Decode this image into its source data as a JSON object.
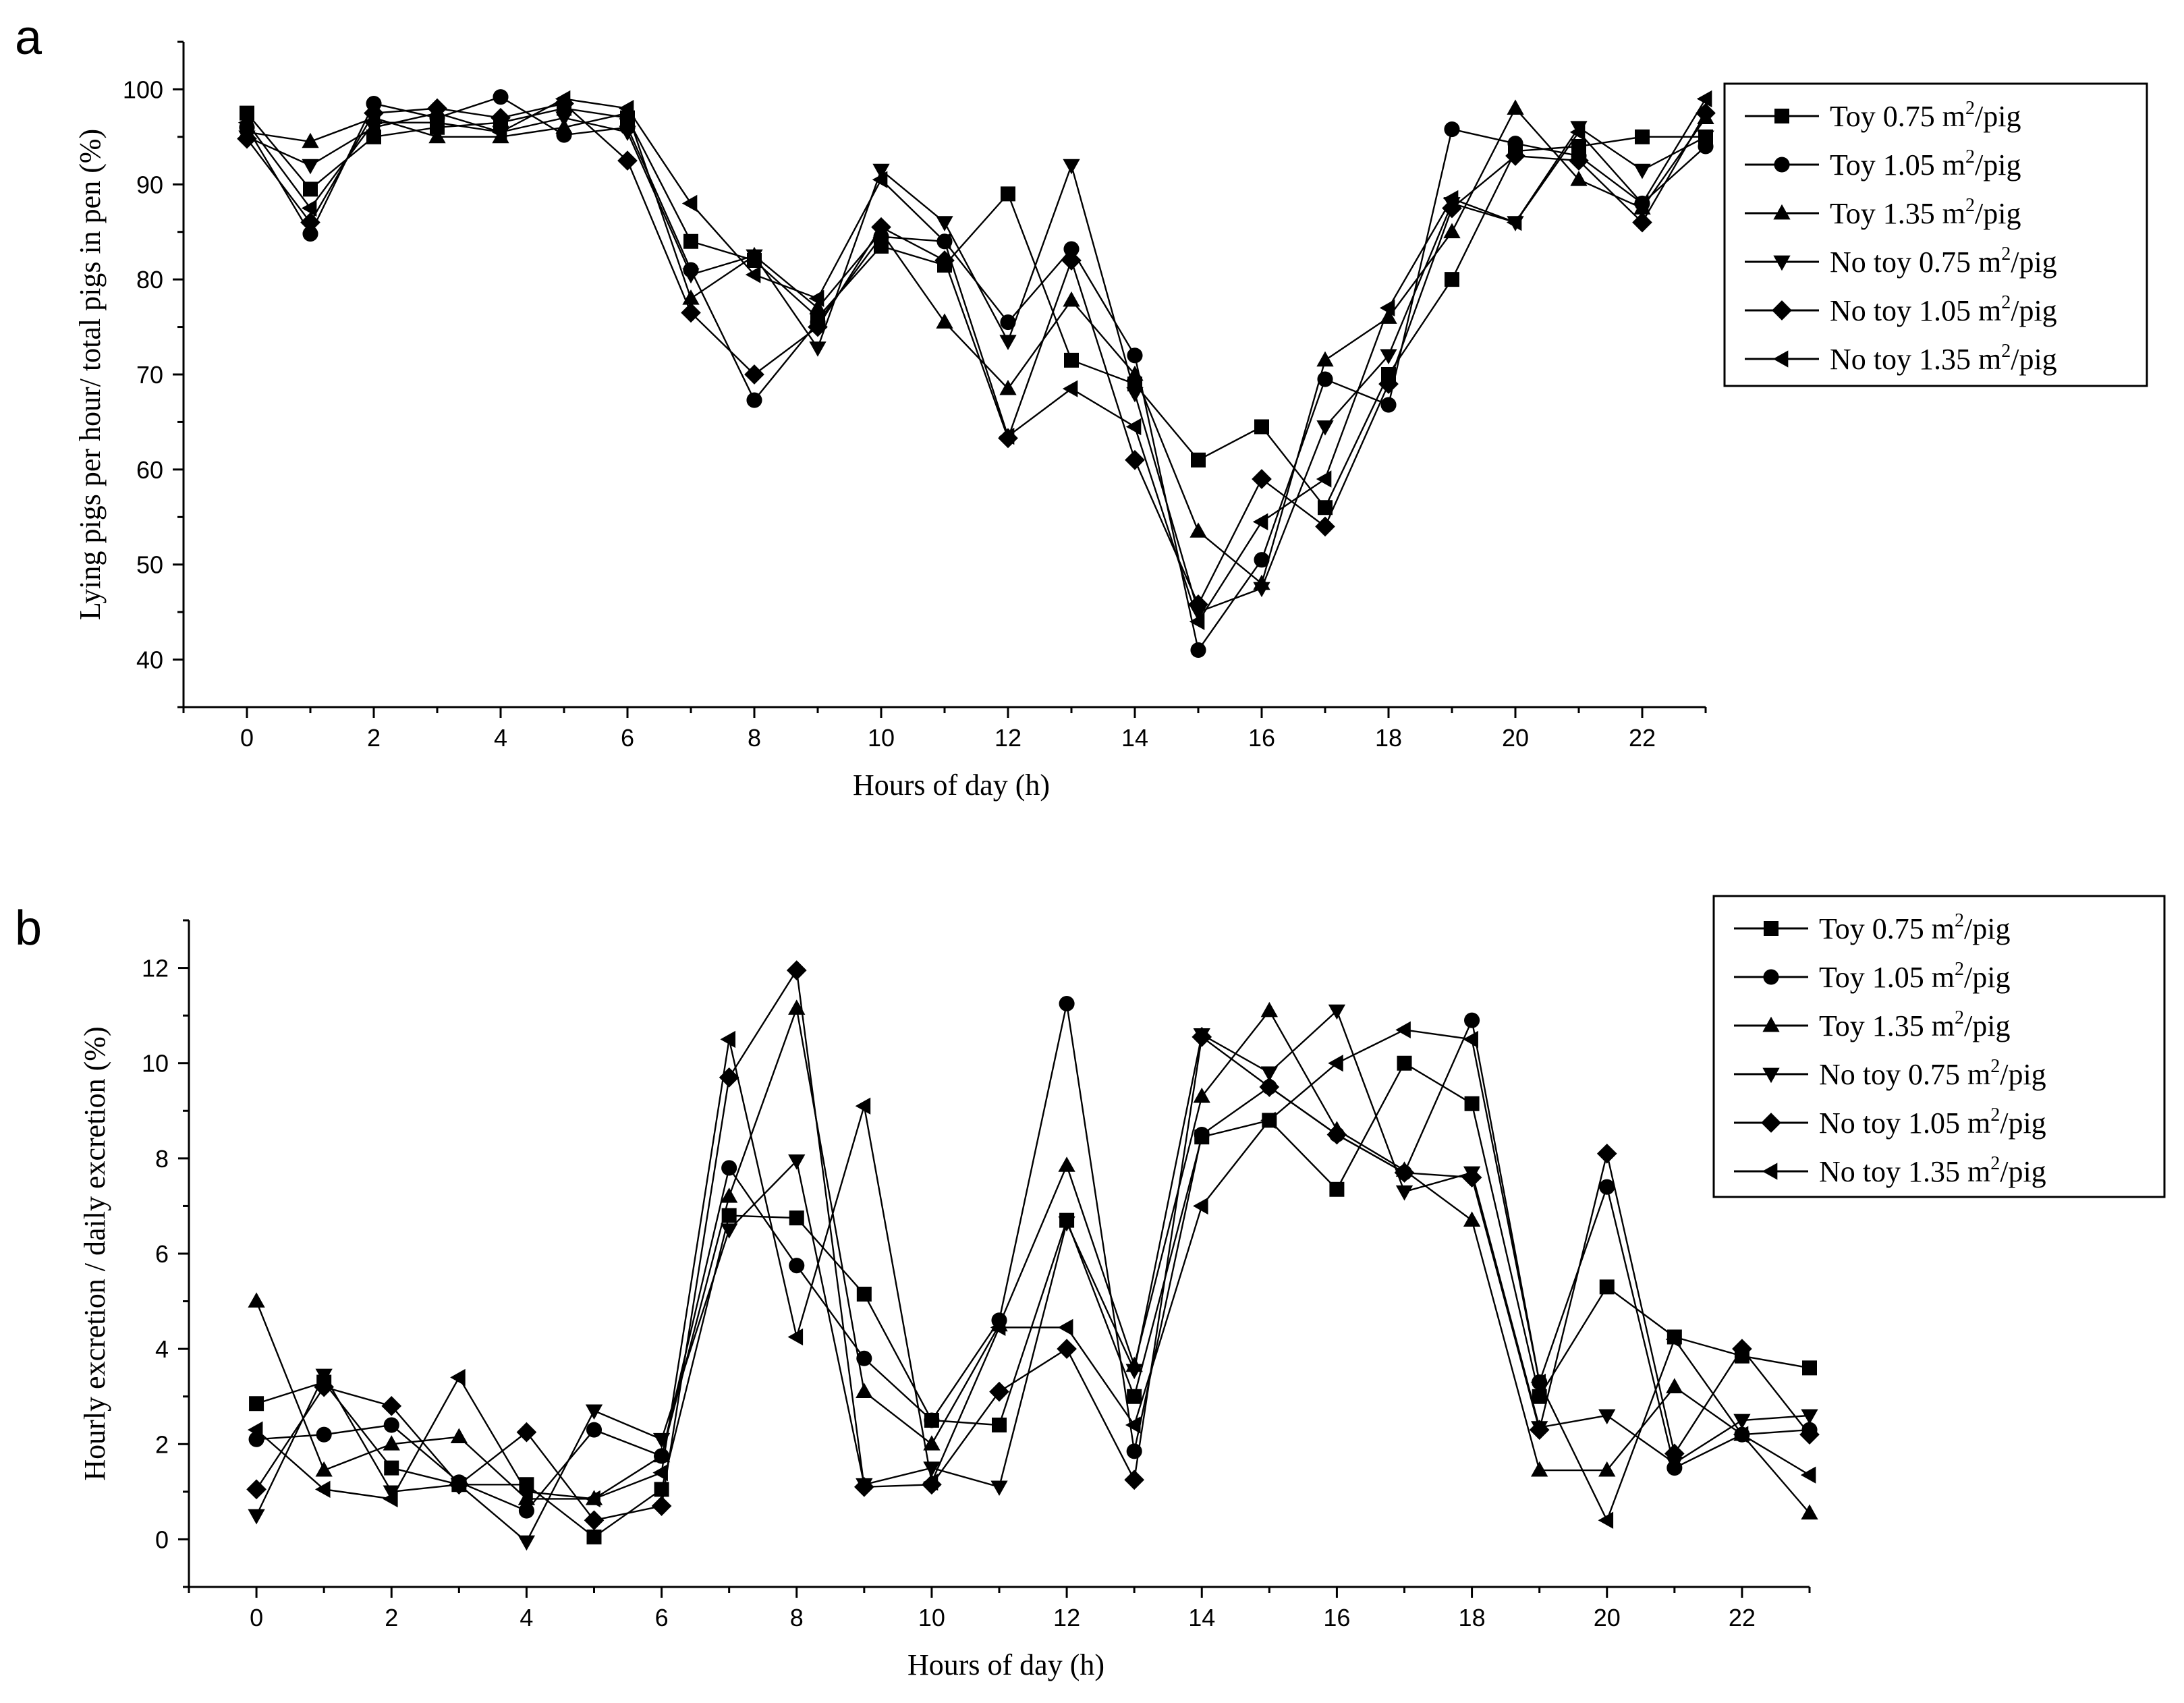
{
  "chart_data": [
    {
      "panel": "a",
      "type": "line",
      "xlabel": "Hours of day (h)",
      "ylabel": "Lying pigs per hour/ total pigs in pen (%)",
      "xlim": [
        -1,
        23
      ],
      "ylim": [
        35,
        105
      ],
      "x_ticks": [
        0,
        2,
        4,
        6,
        8,
        10,
        12,
        14,
        16,
        18,
        20,
        22
      ],
      "y_ticks": [
        40,
        50,
        60,
        70,
        80,
        90,
        100
      ],
      "legend_position": "top-right",
      "grid": false,
      "x": [
        0,
        1,
        2,
        3,
        4,
        5,
        6,
        7,
        8,
        9,
        10,
        11,
        12,
        13,
        14,
        15,
        16,
        17,
        18,
        19,
        20,
        21,
        22,
        23
      ],
      "series": [
        {
          "name": "Toy 0.75 m²/pig",
          "marker": "square",
          "values": [
            97.5,
            89.5,
            95,
            96,
            96.5,
            98,
            97,
            84,
            82,
            76,
            83.5,
            81.5,
            89,
            71.5,
            69,
            61,
            64.5,
            56,
            70,
            80,
            93.5,
            94,
            95,
            95
          ]
        },
        {
          "name": "Toy 1.05 m²/pig",
          "marker": "circle",
          "values": [
            96,
            84.8,
            98.5,
            97,
            99.2,
            95.2,
            96,
            81,
            67.3,
            75.5,
            84.5,
            84,
            75.5,
            83.2,
            72,
            41,
            50.5,
            69.5,
            66.8,
            95.8,
            94.3,
            93,
            88,
            94
          ]
        },
        {
          "name": "Toy 1.35 m²/pig",
          "marker": "triangle-up",
          "values": [
            95.5,
            94.5,
            97,
            95,
            95,
            96,
            97.5,
            78,
            82.5,
            77,
            85,
            75.5,
            68.5,
            77.8,
            70,
            53.5,
            48,
            71.5,
            76,
            85,
            98,
            90.5,
            87.5,
            97
          ]
        },
        {
          "name": "No toy 0.75 m²/pig",
          "marker": "triangle-down",
          "values": [
            95,
            92,
            96,
            97.5,
            95.5,
            97,
            95.5,
            80.5,
            82.5,
            72.8,
            91.5,
            86,
            73.5,
            92,
            68,
            45,
            47.5,
            64.5,
            72,
            88,
            86,
            96,
            91.5,
            95
          ]
        },
        {
          "name": "No toy 1.05 m²/pig",
          "marker": "diamond",
          "values": [
            94.8,
            86,
            97.5,
            98,
            97,
            98.5,
            92.5,
            76.5,
            70,
            75,
            85.5,
            82,
            63.3,
            82,
            61,
            45.8,
            59,
            54,
            69,
            87.5,
            93,
            92.5,
            86,
            97.5
          ]
        },
        {
          "name": "No toy 1.35 m²/pig",
          "marker": "triangle-left",
          "values": [
            96.5,
            87.5,
            96.5,
            96.5,
            95.5,
            99,
            98,
            88,
            80.5,
            78,
            90.5,
            84,
            63.5,
            68.5,
            64.5,
            44,
            54.5,
            59,
            77,
            88.5,
            86,
            95.5,
            88,
            99
          ]
        }
      ]
    },
    {
      "panel": "b",
      "type": "line",
      "xlabel": "Hours of day (h)",
      "ylabel": "Hourly excretion / daily excretion (%)",
      "xlim": [
        -1,
        23
      ],
      "ylim": [
        -1,
        13
      ],
      "x_ticks": [
        0,
        2,
        4,
        6,
        8,
        10,
        12,
        14,
        16,
        18,
        20,
        22
      ],
      "y_ticks": [
        0,
        2,
        4,
        6,
        8,
        10,
        12
      ],
      "legend_position": "top-right",
      "grid": false,
      "x": [
        0,
        1,
        2,
        3,
        4,
        5,
        6,
        7,
        8,
        9,
        10,
        11,
        12,
        13,
        14,
        15,
        16,
        17,
        18,
        19,
        20,
        21,
        22,
        23
      ],
      "series": [
        {
          "name": "Toy 0.75 m²/pig",
          "marker": "square",
          "values": [
            2.85,
            3.3,
            1.5,
            1.15,
            1.15,
            0.05,
            1.05,
            6.8,
            6.75,
            5.15,
            2.5,
            2.4,
            6.7,
            3.0,
            8.45,
            8.8,
            7.35,
            10.0,
            9.15,
            3.0,
            5.3,
            4.25,
            3.85,
            3.6
          ]
        },
        {
          "name": "Toy 1.05 m²/pig",
          "marker": "circle",
          "values": [
            2.1,
            2.2,
            2.4,
            1.2,
            0.6,
            2.3,
            1.75,
            7.8,
            5.75,
            3.8,
            2.5,
            4.6,
            11.25,
            1.85,
            8.5,
            9.5,
            8.5,
            7.7,
            10.9,
            3.3,
            7.4,
            1.5,
            2.2,
            2.3
          ]
        },
        {
          "name": "Toy 1.35 m²/pig",
          "marker": "triangle-up",
          "values": [
            5.0,
            1.45,
            2.0,
            2.15,
            0.85,
            0.85,
            1.75,
            7.2,
            11.15,
            3.1,
            2.0,
            4.5,
            7.85,
            3.65,
            9.3,
            11.1,
            8.6,
            7.75,
            6.7,
            1.45,
            1.45,
            3.2,
            2.2,
            0.55
          ]
        },
        {
          "name": "No toy 0.75 m²/pig",
          "marker": "triangle-down",
          "values": [
            0.5,
            3.45,
            1.0,
            1.15,
            -0.05,
            2.7,
            2.1,
            6.5,
            7.95,
            1.15,
            1.5,
            1.1,
            6.65,
            3.55,
            10.6,
            9.8,
            11.1,
            7.3,
            7.7,
            2.35,
            2.6,
            1.6,
            2.5,
            2.6
          ]
        },
        {
          "name": "No toy 1.05 m²/pig",
          "marker": "diamond",
          "values": [
            1.05,
            3.2,
            2.8,
            1.15,
            2.25,
            0.4,
            0.7,
            9.7,
            11.95,
            1.1,
            1.15,
            3.1,
            4.0,
            1.25,
            10.55,
            9.5,
            8.5,
            7.7,
            7.6,
            2.3,
            8.1,
            1.8,
            4.0,
            2.2
          ]
        },
        {
          "name": "No toy 1.35 m²/pig",
          "marker": "triangle-left",
          "values": [
            2.3,
            1.05,
            0.85,
            3.4,
            1.0,
            0.85,
            1.4,
            10.5,
            4.25,
            9.1,
            1.2,
            4.45,
            4.45,
            2.4,
            7.0,
            8.8,
            10.0,
            10.7,
            10.5,
            3.3,
            0.4,
            4.2,
            2.2,
            1.35
          ]
        }
      ]
    }
  ]
}
